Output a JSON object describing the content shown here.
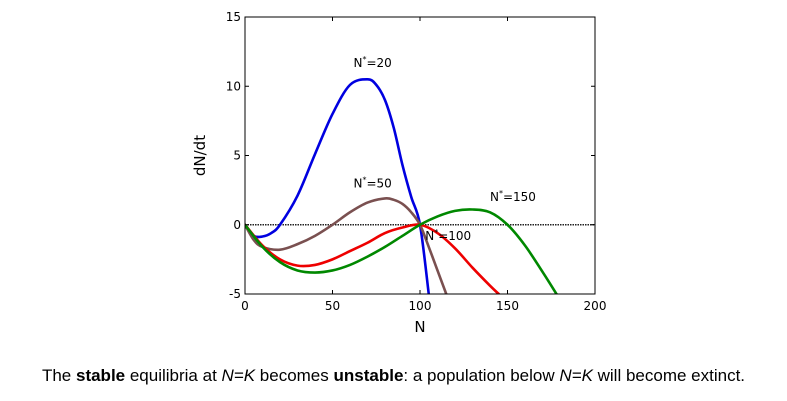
{
  "chart_data": {
    "type": "line",
    "xlabel": "N",
    "ylabel": "dN/dt",
    "xlim": [
      0,
      200
    ],
    "ylim": [
      -5,
      15
    ],
    "xticks": [
      0,
      50,
      100,
      150,
      200
    ],
    "yticks": [
      -5,
      0,
      5,
      10,
      15
    ],
    "xtick_labels": [
      "0",
      "50",
      "100",
      "150",
      "200"
    ],
    "ytick_labels": [
      "-5",
      "0",
      "5",
      "10",
      "15"
    ],
    "grid": false,
    "legend": "none",
    "zero_line": true,
    "series": [
      {
        "name": "N*=20",
        "label_text": "N",
        "label_sup": "*",
        "label_suffix": "=20",
        "label_at": [
          62,
          11.4
        ],
        "color": "#0000e0",
        "x": [
          0,
          5,
          10,
          15,
          20,
          30,
          40,
          50,
          60,
          70,
          75,
          80,
          85,
          90,
          95,
          100,
          105
        ],
        "y": [
          0,
          -0.8,
          -0.85,
          -0.6,
          0,
          2.1,
          5.1,
          8.0,
          10.1,
          10.5,
          10.1,
          9.0,
          7.0,
          4.3,
          2.0,
          0,
          -5
        ]
      },
      {
        "name": "N*=50",
        "label_text": "N",
        "label_sup": "*",
        "label_suffix": "=50",
        "label_at": [
          62,
          2.7
        ],
        "color": "#7a5050",
        "x": [
          0,
          5,
          10,
          20,
          30,
          40,
          50,
          60,
          70,
          80,
          85,
          90,
          95,
          100,
          105,
          110,
          115
        ],
        "y": [
          0,
          -1.1,
          -1.6,
          -1.8,
          -1.4,
          -0.8,
          0,
          0.9,
          1.6,
          1.9,
          1.8,
          1.5,
          0.9,
          0,
          -1.6,
          -3.3,
          -5
        ]
      },
      {
        "name": "N*=100",
        "label_text": "N",
        "label_sup": "*",
        "label_suffix": "=100",
        "label_at": [
          103,
          -1.1
        ],
        "color": "#ee0000",
        "x": [
          0,
          10,
          20,
          30,
          40,
          50,
          60,
          70,
          80,
          90,
          100,
          110,
          120,
          130,
          140,
          145
        ],
        "y": [
          0,
          -1.5,
          -2.5,
          -2.95,
          -2.9,
          -2.5,
          -1.9,
          -1.3,
          -0.6,
          -0.2,
          0,
          -0.6,
          -1.7,
          -3.1,
          -4.4,
          -5
        ]
      },
      {
        "name": "N*=150",
        "label_text": "N",
        "label_sup": "*",
        "label_suffix": "=150",
        "label_at": [
          140,
          1.7
        ],
        "color": "#008800",
        "x": [
          0,
          10,
          20,
          30,
          40,
          50,
          60,
          70,
          80,
          90,
          100,
          110,
          120,
          130,
          140,
          150,
          160,
          170,
          178
        ],
        "y": [
          0,
          -1.6,
          -2.7,
          -3.3,
          -3.45,
          -3.3,
          -2.9,
          -2.3,
          -1.6,
          -0.8,
          0,
          0.6,
          1.0,
          1.1,
          0.9,
          0,
          -1.5,
          -3.4,
          -5
        ]
      }
    ]
  },
  "caption": {
    "p1": "The ",
    "b1": "stable",
    "p2": " equilibria at ",
    "i1": "N=K",
    "p3": " becomes ",
    "b2": "unstable",
    "p4": ": a population below ",
    "i2": "N=K",
    "p5": " will become extinct."
  }
}
